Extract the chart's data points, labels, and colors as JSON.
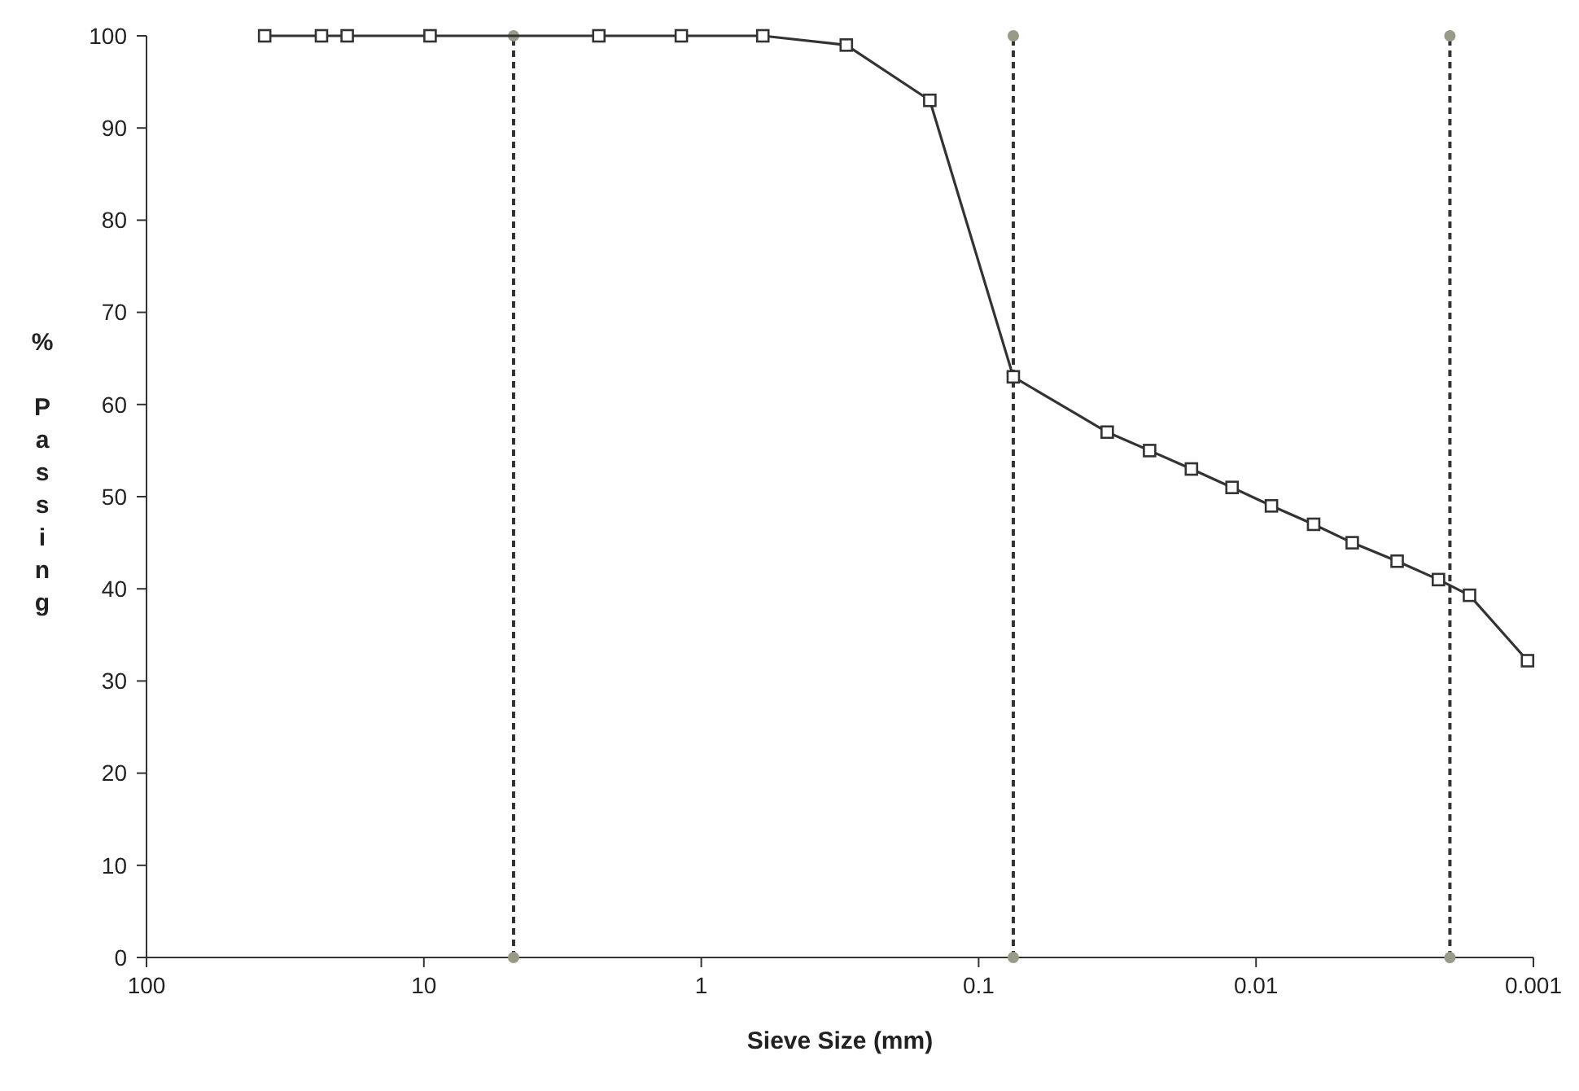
{
  "chart_data": {
    "type": "line",
    "xlabel": "Sieve Size (mm)",
    "ylabel": "% Passing",
    "log": "x",
    "xlim": [
      100,
      0.001
    ],
    "xticks": [
      100,
      10,
      1,
      0.1,
      0.01,
      0.001
    ],
    "ylim": [
      0,
      100
    ],
    "yticks": [
      0,
      10,
      20,
      30,
      40,
      50,
      60,
      70,
      80,
      90,
      100
    ],
    "grid": false,
    "marker": "square",
    "line_style": "solid",
    "series": [
      {
        "color": "#333333",
        "x": [
          37.5,
          23.4,
          18.9,
          9.5,
          2.34,
          1.18,
          0.6,
          0.3,
          0.15,
          0.075,
          0.0344,
          0.0242,
          0.0171,
          0.0122,
          0.0088,
          0.0062,
          0.0045,
          0.0031,
          0.0022,
          0.0017,
          0.00105
        ],
        "values": [
          100,
          100,
          100,
          100,
          100,
          100,
          100,
          99,
          93,
          63,
          57,
          55,
          53,
          51,
          49,
          47,
          45,
          43,
          41,
          39.3,
          32.2
        ]
      }
    ],
    "ref_lines": [
      {
        "axis": "x",
        "value": 4.75,
        "color": "#333333",
        "line_style": "dashed"
      },
      {
        "axis": "x",
        "value": 0.075,
        "color": "#333333",
        "line_style": "dashed"
      },
      {
        "axis": "x",
        "value": 0.002,
        "color": "#333333",
        "line_style": "dashed"
      }
    ]
  }
}
